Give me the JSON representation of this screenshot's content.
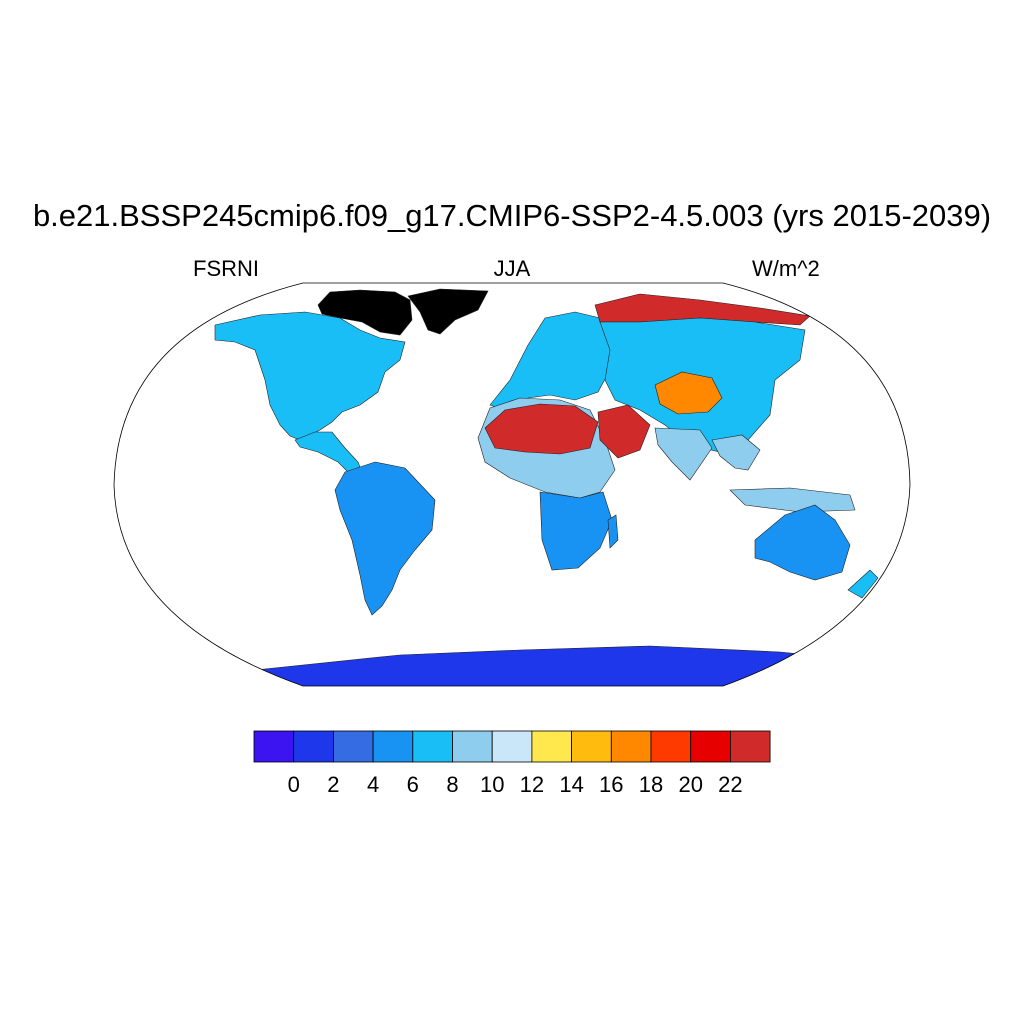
{
  "title": "b.e21.BSSP245cmip6.f09_g17.CMIP6-SSP2-4.5.003 (yrs 2015-2039)",
  "variable": "FSRNI",
  "season": "JJA",
  "units": "W/m^2",
  "map": {
    "projection": "Robinson",
    "ocean_masked": true,
    "regions": [
      {
        "name": "north-america",
        "level": 4
      },
      {
        "name": "canadian-arctic",
        "level": 13
      },
      {
        "name": "greenland",
        "level": 13
      },
      {
        "name": "central-america",
        "level": 4
      },
      {
        "name": "south-america",
        "level": 3
      },
      {
        "name": "europe",
        "level": 4
      },
      {
        "name": "siberia-north",
        "level": 12
      },
      {
        "name": "asia",
        "level": 4
      },
      {
        "name": "central-asia-deserts",
        "level": 9
      },
      {
        "name": "africa-north",
        "level": 5
      },
      {
        "name": "sahara",
        "level": 12
      },
      {
        "name": "arabia",
        "level": 12
      },
      {
        "name": "africa-south",
        "level": 3
      },
      {
        "name": "india",
        "level": 5
      },
      {
        "name": "southeast-asia",
        "level": 5
      },
      {
        "name": "australia",
        "level": 3
      },
      {
        "name": "new-zealand",
        "level": 4
      },
      {
        "name": "antarctica",
        "level": 1
      }
    ]
  },
  "colorbar": {
    "colors": [
      "#3c14f2",
      "#1f37ea",
      "#356ce3",
      "#1893f4",
      "#19bef7",
      "#8ecdee",
      "#cae7f9",
      "#ffe84e",
      "#ffbc0f",
      "#ff8800",
      "#ff3a00",
      "#e60000",
      "#d12a2a"
    ],
    "labels": [
      "0",
      "2",
      "4",
      "6",
      "8",
      "10",
      "12",
      "14",
      "16",
      "18",
      "20",
      "22"
    ]
  }
}
